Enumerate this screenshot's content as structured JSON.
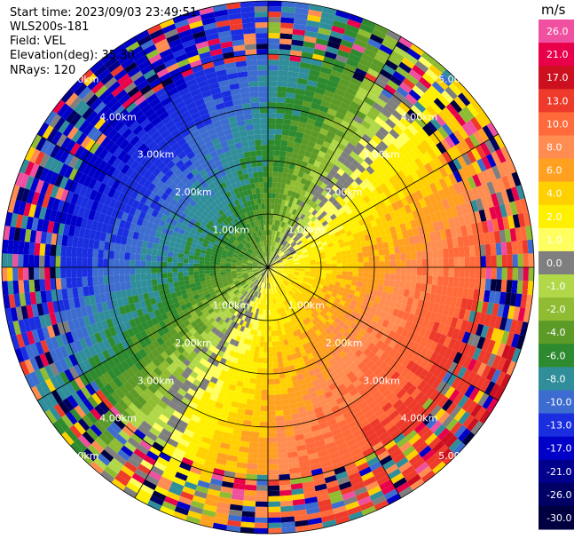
{
  "header": {
    "start_time": "Start time: 2023/09/03 23:49:51",
    "instrument": "WLS200s-181",
    "field": "Field: VEL",
    "elevation": "Elevation(deg): 35.30",
    "nrays": "NRays: 120"
  },
  "chart_data": {
    "type": "heatmap",
    "projection": "polar-ppi",
    "field": "VEL",
    "unit": "m/s",
    "nrays": 120,
    "elevation_deg": 35.3,
    "range_rings_km": [
      1.0,
      2.0,
      3.0,
      4.0,
      5.0
    ],
    "ring_labels": [
      "1.00km",
      "2.00km",
      "3.00km",
      "4.00km",
      "5.00km"
    ],
    "max_range_km": 5.0,
    "spokes_deg": [
      0,
      30,
      60,
      90,
      120,
      150,
      180,
      210,
      240,
      270,
      300,
      330
    ],
    "colorbar": {
      "title": "m/s",
      "ticks": [
        "26.0",
        "21.0",
        "17.0",
        "13.0",
        "10.0",
        "8.0",
        "6.0",
        "4.0",
        "2.0",
        "1.0",
        "0.0",
        "-1.0",
        "-2.0",
        "-4.0",
        "-6.0",
        "-8.0",
        "-10.0",
        "-13.0",
        "-17.0",
        "-21.0",
        "-26.0",
        "-30.0"
      ],
      "bands": [
        {
          "label": "26.0",
          "color": "#f050a0"
        },
        {
          "label": "21.0",
          "color": "#e8004a"
        },
        {
          "label": "17.0",
          "color": "#cc1020"
        },
        {
          "label": "13.0",
          "color": "#ee3a2a"
        },
        {
          "label": "10.0",
          "color": "#ff6a3a"
        },
        {
          "label": "8.0",
          "color": "#ff8c50"
        },
        {
          "label": "6.0",
          "color": "#ffa020"
        },
        {
          "label": "4.0",
          "color": "#ffd000"
        },
        {
          "label": "2.0",
          "color": "#fff000"
        },
        {
          "label": "1.0",
          "color": "#ffff60"
        },
        {
          "label": "0.0",
          "color": "#7f7f7f"
        },
        {
          "label": "-1.0",
          "color": "#b0d848"
        },
        {
          "label": "-2.0",
          "color": "#8fbc32"
        },
        {
          "label": "-4.0",
          "color": "#5c9a28"
        },
        {
          "label": "-6.0",
          "color": "#2e8a2e"
        },
        {
          "label": "-8.0",
          "color": "#2f8e9a"
        },
        {
          "label": "-10.0",
          "color": "#3c6ccf"
        },
        {
          "label": "-13.0",
          "color": "#1a2ee0"
        },
        {
          "label": "-17.0",
          "color": "#0000c8"
        },
        {
          "label": "-21.0",
          "color": "#00008c"
        },
        {
          "label": "-26.0",
          "color": "#000064"
        },
        {
          "label": "-30.0",
          "color": "#000040"
        }
      ]
    }
  }
}
